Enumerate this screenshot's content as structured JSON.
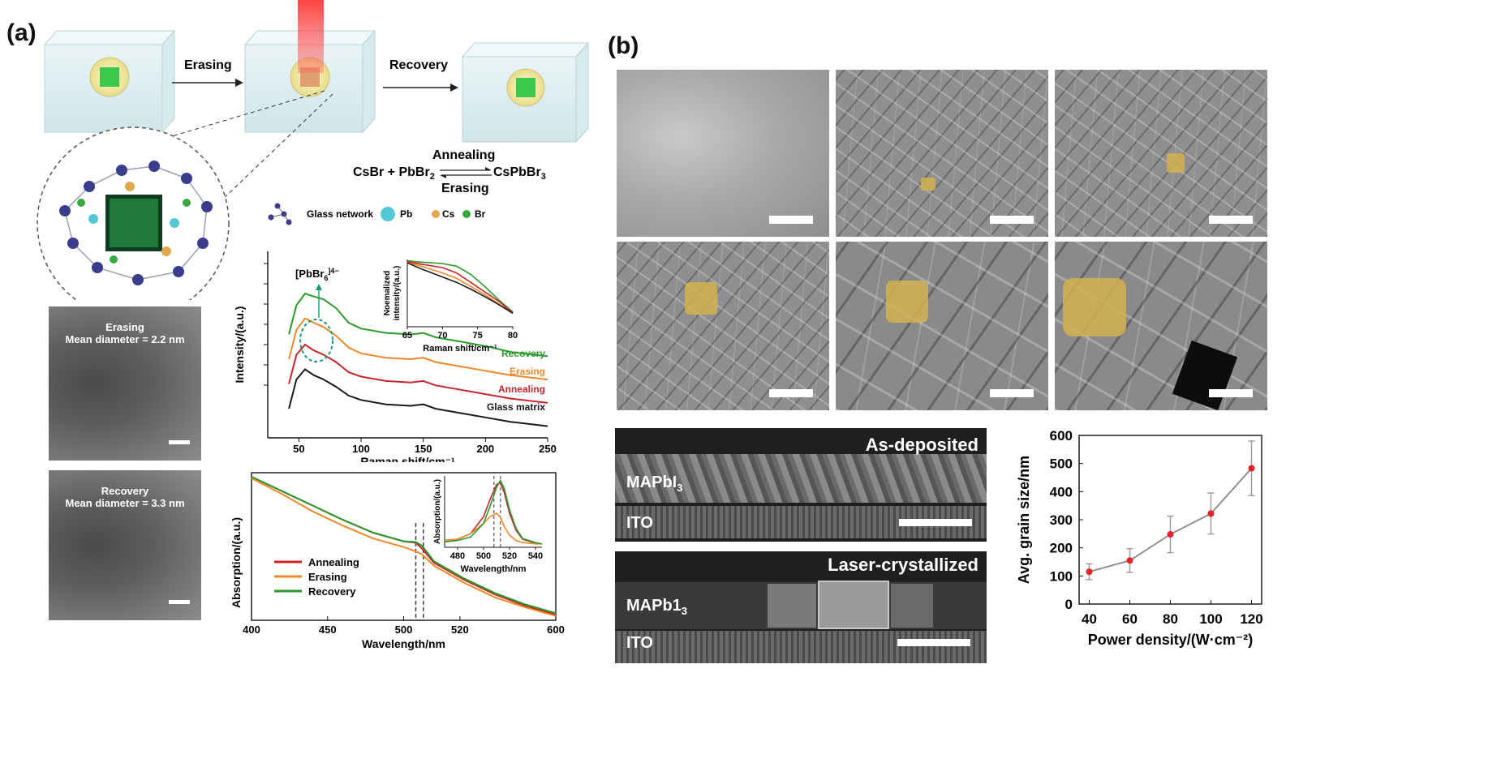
{
  "panel_a": {
    "label": "(a)",
    "schematic": {
      "arrow1": "Erasing",
      "arrow2": "Recovery",
      "equation_left": "CsBr + PbBr",
      "equation_left_sub": "2",
      "equation_right": "CsPbBr",
      "equation_right_sub": "3",
      "equation_top": "Annealing",
      "equation_bottom": "Erasing",
      "legend": {
        "glass": "Glass network",
        "pb": "Pb",
        "cs": "Cs",
        "br": "Br"
      }
    },
    "tem": [
      {
        "title": "Erasing",
        "subtitle": "Mean diameter = 2.2 nm"
      },
      {
        "title": "Recovery",
        "subtitle": "Mean diameter = 3.3 nm"
      }
    ]
  },
  "panel_b": {
    "label": "(b)",
    "cross_sections": [
      {
        "title": "As-deposited",
        "layer_top": "MAPbI",
        "layer_top_sub": "3",
        "layer_bottom": "ITO"
      },
      {
        "title": "Laser-crystallized",
        "layer_top": "MAPb1",
        "layer_top_sub": "3",
        "layer_bottom": "ITO"
      }
    ]
  },
  "chart_data": [
    {
      "id": "raman",
      "type": "line",
      "xlabel": "Raman shift/cm⁻¹",
      "ylabel": "Intensity/(a.u.)",
      "xlim": [
        25,
        250
      ],
      "xticks": [
        "50",
        "100",
        "150",
        "200",
        "250"
      ],
      "annotation": "[PbBr",
      "annotation_sub": "6",
      "annotation_sup": "]4−",
      "series": [
        {
          "name": "Recovery",
          "color": "#2a9a2a",
          "offset": 3,
          "x": [
            42,
            48,
            55,
            62,
            70,
            80,
            90,
            100,
            120,
            140,
            150,
            160,
            180,
            200,
            220,
            250
          ],
          "y": [
            2.9,
            3.9,
            4.3,
            4.2,
            4.1,
            3.8,
            3.3,
            3.1,
            2.95,
            2.9,
            2.95,
            2.8,
            2.65,
            2.5,
            2.3,
            2.15
          ]
        },
        {
          "name": "Erasing",
          "color": "#f0882a",
          "offset": 2,
          "x": [
            42,
            48,
            55,
            62,
            70,
            80,
            90,
            100,
            120,
            140,
            150,
            160,
            180,
            200,
            220,
            250
          ],
          "y": [
            2.8,
            3.8,
            4.2,
            4.05,
            3.9,
            3.6,
            3.2,
            3.0,
            2.85,
            2.8,
            2.85,
            2.7,
            2.55,
            2.4,
            2.25,
            2.1
          ]
        },
        {
          "name": "Annealing",
          "color": "#c8262a",
          "offset": 1,
          "x": [
            42,
            48,
            55,
            62,
            70,
            80,
            90,
            100,
            120,
            140,
            150,
            160,
            180,
            200,
            220,
            250
          ],
          "y": [
            2.7,
            3.7,
            4.05,
            3.85,
            3.7,
            3.45,
            3.1,
            2.95,
            2.8,
            2.75,
            2.8,
            2.65,
            2.5,
            2.35,
            2.2,
            2.05
          ]
        },
        {
          "name": "Glass matrix",
          "color": "#1a1a1a",
          "offset": 0,
          "x": [
            42,
            48,
            55,
            62,
            70,
            80,
            90,
            100,
            120,
            140,
            150,
            160,
            180,
            200,
            220,
            250
          ],
          "y": [
            2.6,
            3.6,
            3.95,
            3.75,
            3.6,
            3.35,
            3.05,
            2.9,
            2.75,
            2.7,
            2.75,
            2.6,
            2.45,
            2.3,
            2.15,
            2.0
          ]
        }
      ],
      "inset": {
        "xlabel": "Raman shift/cm⁻¹",
        "ylabel": "Noemalized intensity/(a.u.)",
        "xlim": [
          65,
          80
        ],
        "xticks": [
          "65",
          "70",
          "75",
          "80"
        ],
        "series": [
          {
            "name": "Recovery",
            "color": "#2a9a2a",
            "x": [
              65,
              67,
              70,
              72,
              74,
              76,
              78,
              80
            ],
            "y": [
              0.98,
              0.96,
              0.94,
              0.9,
              0.78,
              0.6,
              0.4,
              0.22
            ]
          },
          {
            "name": "Erasing",
            "color": "#f0882a",
            "x": [
              65,
              67,
              70,
              72,
              74,
              76,
              78,
              80
            ],
            "y": [
              0.96,
              0.9,
              0.8,
              0.72,
              0.6,
              0.48,
              0.34,
              0.2
            ]
          },
          {
            "name": "Annealing",
            "color": "#c8262a",
            "x": [
              65,
              67,
              70,
              72,
              74,
              76,
              78,
              80
            ],
            "y": [
              0.97,
              0.93,
              0.88,
              0.8,
              0.66,
              0.52,
              0.38,
              0.21
            ]
          },
          {
            "name": "Glass matrix",
            "color": "#1a1a1a",
            "x": [
              65,
              67,
              70,
              72,
              74,
              76,
              78,
              80
            ],
            "y": [
              0.95,
              0.86,
              0.74,
              0.66,
              0.56,
              0.45,
              0.33,
              0.2
            ]
          }
        ]
      }
    },
    {
      "id": "absorption",
      "type": "line",
      "xlabel": "Wavelength/nm",
      "ylabel": "Absorption/(a.u.)",
      "xlim": [
        400,
        600
      ],
      "xticks": [
        "400",
        "450",
        "500",
        "520",
        "600"
      ],
      "series": [
        {
          "name": "Annealing",
          "color": "#c8262a",
          "x": [
            400,
            420,
            440,
            460,
            480,
            500,
            508,
            512,
            520,
            540,
            560,
            580,
            600
          ],
          "y": [
            1.0,
            0.9,
            0.8,
            0.7,
            0.61,
            0.55,
            0.54,
            0.5,
            0.4,
            0.28,
            0.18,
            0.1,
            0.04
          ]
        },
        {
          "name": "Erasing",
          "color": "#f0882a",
          "x": [
            400,
            420,
            440,
            460,
            480,
            500,
            508,
            512,
            520,
            540,
            560,
            580,
            600
          ],
          "y": [
            0.99,
            0.88,
            0.76,
            0.66,
            0.57,
            0.51,
            0.48,
            0.46,
            0.38,
            0.26,
            0.16,
            0.09,
            0.03
          ]
        },
        {
          "name": "Recovery",
          "color": "#2a9a2a",
          "x": [
            400,
            420,
            440,
            460,
            480,
            500,
            508,
            512,
            520,
            540,
            560,
            580,
            600
          ],
          "y": [
            1.0,
            0.9,
            0.8,
            0.7,
            0.61,
            0.55,
            0.545,
            0.52,
            0.41,
            0.29,
            0.19,
            0.11,
            0.05
          ]
        }
      ],
      "inset": {
        "xlabel": "Wavelength/nm",
        "ylabel": "Absorption/(a.u.)",
        "xlim": [
          470,
          545
        ],
        "xticks": [
          "480",
          "500",
          "520",
          "540"
        ],
        "series": [
          {
            "name": "Annealing",
            "color": "#c8262a",
            "x": [
              470,
              480,
              490,
              500,
              505,
              510,
              513,
              516,
              520,
              525,
              530,
              540,
              545
            ],
            "y": [
              0.1,
              0.12,
              0.2,
              0.45,
              0.7,
              0.92,
              0.95,
              0.8,
              0.5,
              0.25,
              0.12,
              0.06,
              0.05
            ]
          },
          {
            "name": "Erasing",
            "color": "#f0882a",
            "x": [
              470,
              480,
              490,
              500,
              505,
              510,
              513,
              516,
              520,
              525,
              530,
              540,
              545
            ],
            "y": [
              0.1,
              0.12,
              0.2,
              0.35,
              0.45,
              0.5,
              0.44,
              0.3,
              0.18,
              0.1,
              0.07,
              0.05,
              0.05
            ]
          },
          {
            "name": "Recovery",
            "color": "#2a9a2a",
            "x": [
              470,
              480,
              490,
              500,
              505,
              510,
              513,
              516,
              520,
              525,
              530,
              540,
              545
            ],
            "y": [
              0.08,
              0.1,
              0.15,
              0.35,
              0.6,
              0.88,
              0.98,
              0.86,
              0.55,
              0.28,
              0.13,
              0.07,
              0.05
            ]
          }
        ]
      }
    },
    {
      "id": "grain",
      "type": "scatter",
      "xlabel": "Power density/(W·cm⁻²)",
      "ylabel": "Avg. grain size/nm",
      "xlim": [
        35,
        125
      ],
      "ylim": [
        0,
        600
      ],
      "xticks": [
        40,
        60,
        80,
        100,
        120
      ],
      "yticks": [
        0,
        100,
        200,
        300,
        400,
        500,
        600
      ],
      "x": [
        40,
        60,
        80,
        100,
        120
      ],
      "y": [
        115,
        155,
        248,
        322,
        483
      ],
      "err": [
        28,
        42,
        65,
        73,
        97
      ]
    }
  ]
}
